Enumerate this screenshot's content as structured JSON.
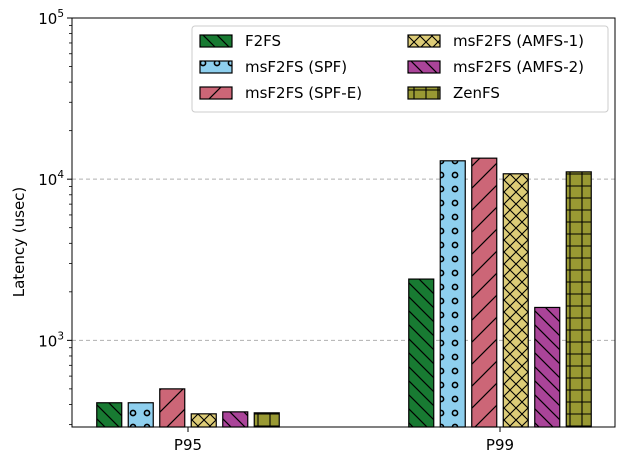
{
  "chart_data": {
    "type": "bar",
    "title": "",
    "xlabel": "",
    "ylabel": "Latency (usec)",
    "yscale": "log",
    "ylim": [
      290,
      100000
    ],
    "yticks": [
      {
        "value": 1000,
        "base": "10",
        "exp": "3"
      },
      {
        "value": 10000,
        "base": "10",
        "exp": "4"
      },
      {
        "value": 100000,
        "base": "10",
        "exp": "5"
      }
    ],
    "grid": "horizontal-dashed",
    "legend": "top-right",
    "categories": [
      "P95",
      "P99"
    ],
    "series": [
      {
        "name": "F2FS",
        "values": [
          410,
          2400
        ],
        "color": "#187a32",
        "hatch": "backslash"
      },
      {
        "name": "msF2FS (SPF)",
        "values": [
          410,
          13000
        ],
        "color": "#8ecfee",
        "hatch": "circles"
      },
      {
        "name": "msF2FS (SPF-E)",
        "values": [
          500,
          13500
        ],
        "color": "#cc6677",
        "hatch": "slash"
      },
      {
        "name": "msF2FS (AMFS-1)",
        "values": [
          350,
          10800
        ],
        "color": "#ddcc77",
        "hatch": "cross"
      },
      {
        "name": "msF2FS (AMFS-2)",
        "values": [
          360,
          1600
        ],
        "color": "#aa4499",
        "hatch": "backslash"
      },
      {
        "name": "ZenFS",
        "values": [
          355,
          11100
        ],
        "color": "#999933",
        "hatch": "grid"
      }
    ]
  }
}
